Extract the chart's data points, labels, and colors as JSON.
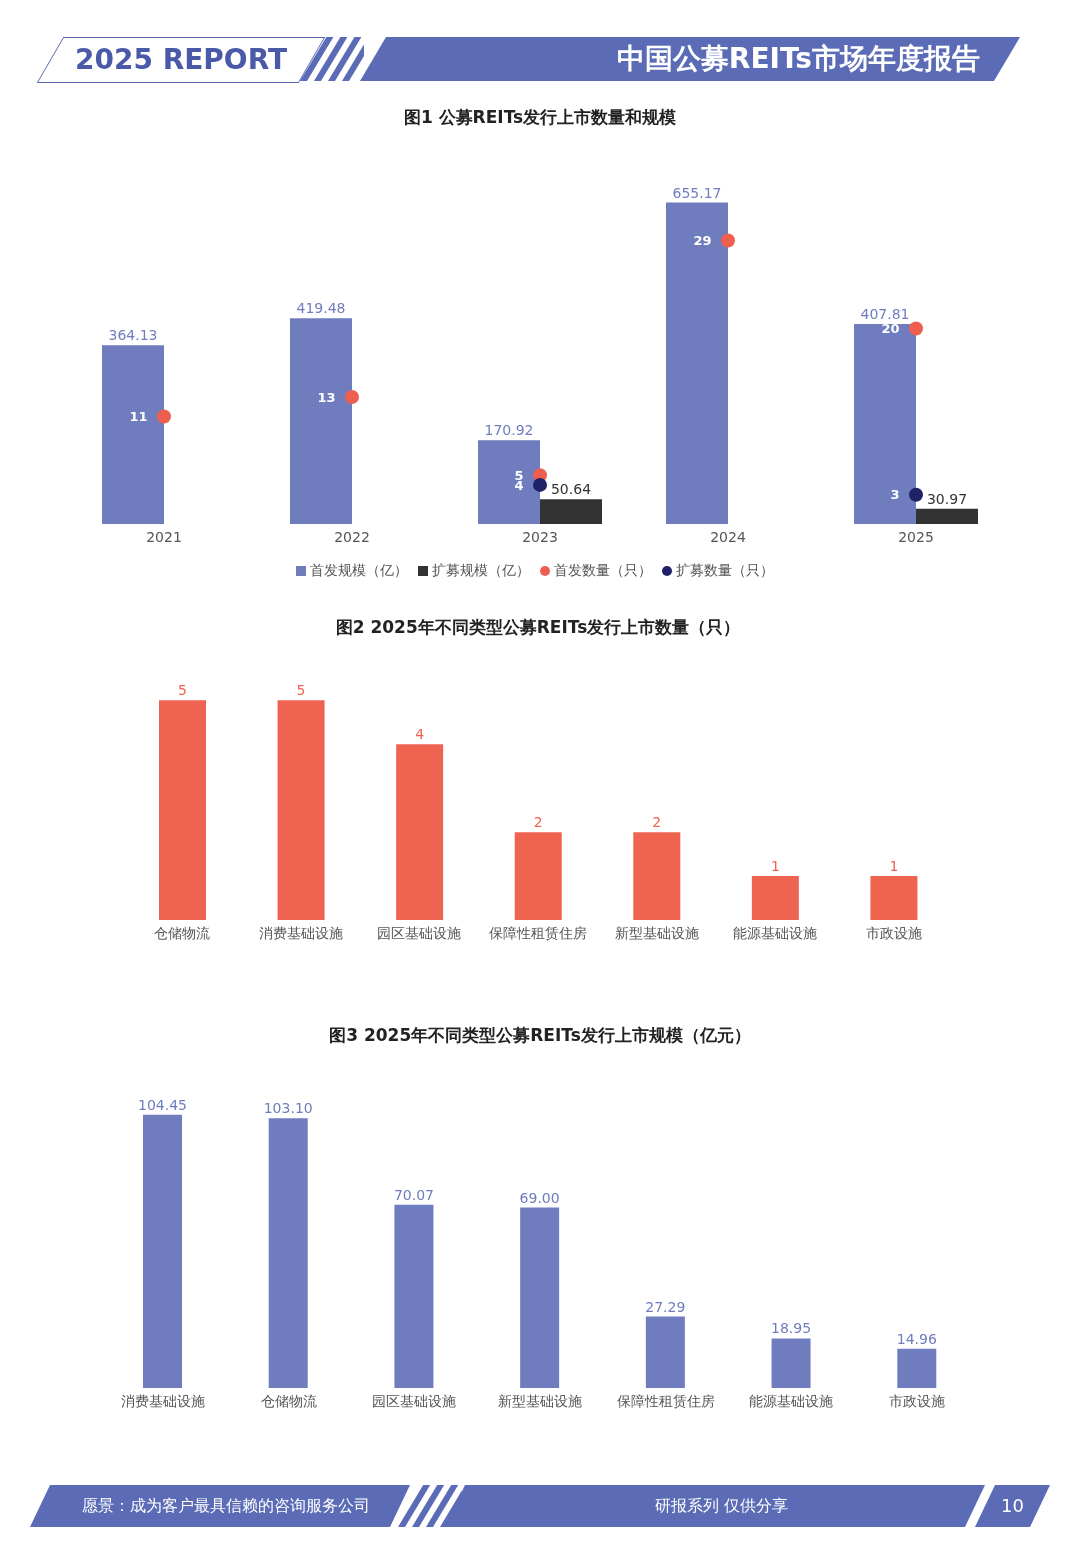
{
  "chart_data": [
    {
      "type": "bar",
      "title": "图1 公募REITs发行上市数量和规模",
      "categories": [
        "2021",
        "2022",
        "2023",
        "2024",
        "2025"
      ],
      "series": [
        {
          "name": "首发规模（亿）",
          "color": "#6f7dbf",
          "values": [
            364.13,
            419.48,
            170.92,
            655.17,
            407.81
          ]
        },
        {
          "name": "扩募规模（亿）",
          "color": "#333333",
          "values": [
            null,
            null,
            50.64,
            null,
            30.97
          ]
        },
        {
          "name": "首发数量（只）",
          "type": "scatter",
          "axis": "y2",
          "color": "#ee5f4f",
          "values": [
            11,
            13,
            5,
            29,
            20
          ]
        },
        {
          "name": "扩募数量（只）",
          "type": "scatter",
          "axis": "y2",
          "color": "#1f2266",
          "values": [
            null,
            null,
            4,
            null,
            3
          ]
        }
      ],
      "data_labels": true,
      "legend": "bottom",
      "annotations": [
        "2025 REPORT",
        "中国公募REITs市场年度报告"
      ]
    },
    {
      "type": "bar",
      "title": "图2 2025年不同类型公募REITs发行上市数量（只）",
      "categories": [
        "仓储物流",
        "消费基础设施",
        "园区基础设施",
        "保障性租赁住房",
        "新型基础设施",
        "能源基础设施",
        "市政设施"
      ],
      "values": [
        5,
        5,
        4,
        2,
        2,
        1,
        1
      ],
      "color": "#ef6351",
      "data_labels": true
    },
    {
      "type": "bar",
      "title": "图3 2025年不同类型公募REITs发行上市规模（亿元）",
      "categories": [
        "消费基础设施",
        "仓储物流",
        "园区基础设施",
        "新型基础设施",
        "保障性租赁住房",
        "能源基础设施",
        "市政设施"
      ],
      "values": [
        104.45,
        103.1,
        70.07,
        69.0,
        27.29,
        18.95,
        14.96
      ],
      "color": "#6f7dbf",
      "data_labels": true,
      "value_labels": [
        "104.45",
        "103.10",
        "70.07",
        "69.00",
        "27.29",
        "18.95",
        "14.96"
      ],
      "annotations": [
        "愿景：成为客户最具信赖的咨询服务公司",
        "研报系列 仅供分享",
        "10"
      ]
    }
  ]
}
